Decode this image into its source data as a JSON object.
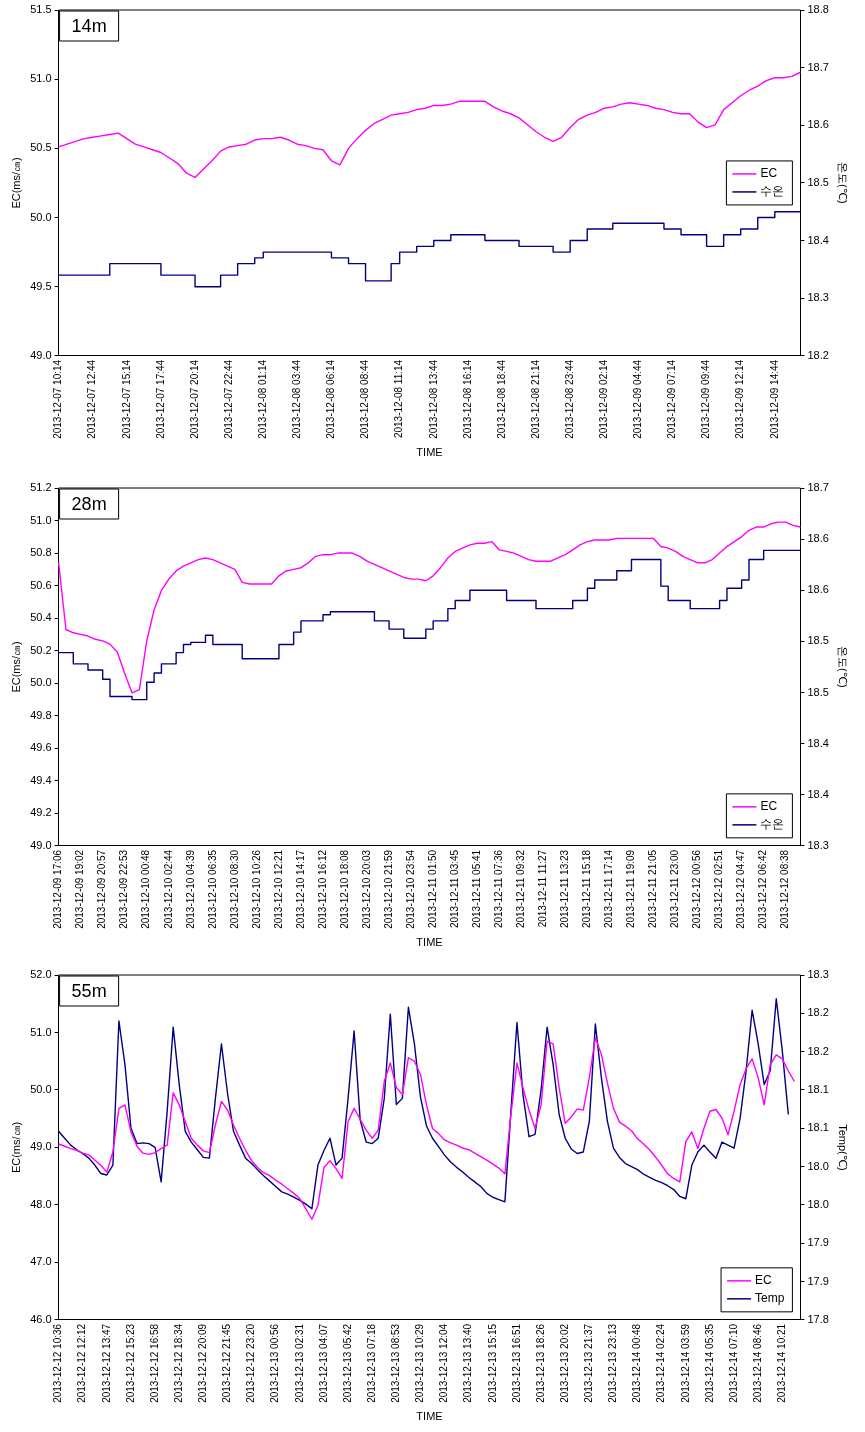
{
  "chart_data": [
    {
      "type": "line",
      "title": "14m",
      "xlabel": "TIME",
      "ylabel": "EC(ms/㎝)",
      "y2label": "온도(℃)",
      "legend": "right",
      "categories": [
        "2013-12-07 10:14",
        null,
        null,
        null,
        "2013-12-07 12:44",
        null,
        null,
        null,
        "2013-12-07 15:14",
        null,
        null,
        null,
        "2013-12-07 17:44",
        null,
        null,
        null,
        "2013-12-07 20:14",
        null,
        null,
        null,
        "2013-12-07 22:44",
        null,
        null,
        null,
        "2013-12-08 01:14",
        null,
        null,
        null,
        "2013-12-08 03:44",
        null,
        null,
        null,
        "2013-12-08 06:14",
        null,
        null,
        null,
        "2013-12-08 08:44",
        null,
        null,
        null,
        "2013-12-08 11:14",
        null,
        null,
        null,
        "2013-12-08 13:44",
        null,
        null,
        null,
        "2013-12-08 16:14",
        null,
        null,
        null,
        "2013-12-08 18:44",
        null,
        null,
        null,
        "2013-12-08 21:14",
        null,
        null,
        null,
        "2013-12-08 23:44",
        null,
        null,
        null,
        "2013-12-09 02:14",
        null,
        null,
        null,
        "2013-12-09 04:44",
        null,
        null,
        null,
        "2013-12-09 07:14",
        null,
        null,
        null,
        "2013-12-09 09:44",
        null,
        null,
        null,
        "2013-12-09 12:14",
        null,
        null,
        null,
        "2013-12-09 14:44",
        null,
        null,
        null
      ],
      "ylim": [
        49,
        51.5
      ],
      "yticks": [
        {
          "value": 49,
          "label": "49.0"
        },
        49.5,
        {
          "value": 50,
          "label": "50.0"
        },
        50.5,
        {
          "value": 51,
          "label": "51.0"
        },
        51.5
      ],
      "y2lim": [
        18.2,
        18.8
      ],
      "y2ticks": [
        18.2,
        18.3,
        18.4,
        18.5,
        18.6,
        18.7,
        18.8
      ],
      "series": [
        {
          "name": "EC",
          "color": "#ff00ff",
          "type": "line",
          "values": [
            50.51,
            50.53,
            50.55,
            50.57,
            50.58,
            50.59,
            50.6,
            50.61,
            50.57,
            50.53,
            50.51,
            50.49,
            50.47,
            50.43,
            50.39,
            50.32,
            50.29,
            50.35,
            50.41,
            50.48,
            50.51,
            50.52,
            50.53,
            50.56,
            50.57,
            50.57,
            50.58,
            50.56,
            50.53,
            50.52,
            50.5,
            50.49,
            50.41,
            50.38,
            50.5,
            50.57,
            50.63,
            50.68,
            50.71,
            50.74,
            50.75,
            50.76,
            50.78,
            50.79,
            50.81,
            50.81,
            50.82,
            50.84,
            50.84,
            50.84,
            50.84,
            50.8,
            50.77,
            50.75,
            50.72,
            50.67,
            50.62,
            50.58,
            50.55,
            50.58,
            50.65,
            50.71,
            50.74,
            50.76,
            50.79,
            50.8,
            50.82,
            50.83,
            50.82,
            50.81,
            50.79,
            50.78,
            50.76,
            50.75,
            50.75,
            50.69,
            50.65,
            50.67,
            50.78,
            50.83,
            50.88,
            50.92,
            50.95,
            50.99,
            51.01,
            51.01,
            51.02,
            51.05
          ]
        },
        {
          "name": "수온",
          "color": "#000080",
          "type": "step",
          "axis": "y2",
          "values": [
            18.34,
            18.34,
            18.34,
            18.34,
            18.34,
            18.34,
            18.36,
            18.36,
            18.36,
            18.36,
            18.36,
            18.36,
            18.34,
            18.34,
            18.34,
            18.34,
            18.32,
            18.32,
            18.32,
            18.34,
            18.34,
            18.36,
            18.36,
            18.37,
            18.38,
            18.38,
            18.38,
            18.38,
            18.38,
            18.38,
            18.38,
            18.38,
            18.37,
            18.37,
            18.36,
            18.36,
            18.33,
            18.33,
            18.33,
            18.36,
            18.38,
            18.38,
            18.39,
            18.39,
            18.4,
            18.4,
            18.41,
            18.41,
            18.41,
            18.41,
            18.4,
            18.4,
            18.4,
            18.4,
            18.39,
            18.39,
            18.39,
            18.39,
            18.38,
            18.38,
            18.4,
            18.4,
            18.42,
            18.42,
            18.42,
            18.43,
            18.43,
            18.43,
            18.43,
            18.43,
            18.43,
            18.42,
            18.42,
            18.41,
            18.41,
            18.41,
            18.39,
            18.39,
            18.41,
            18.41,
            18.42,
            18.42,
            18.44,
            18.44,
            18.45,
            18.45,
            18.45,
            18.45
          ]
        }
      ]
    },
    {
      "type": "line",
      "title": "28m",
      "xlabel": "TIME",
      "ylabel": "EC(ms/㎝)",
      "y2label": "온도(℃)",
      "legend": "bottom right",
      "categories": [
        "2013-12-09 17:06",
        null,
        null,
        "2013-12-09 19:02",
        null,
        null,
        "2013-12-09 20:57",
        null,
        null,
        "2013-12-09 22:53",
        null,
        null,
        "2013-12-10 00:48",
        null,
        null,
        "2013-12-10 02:44",
        null,
        null,
        "2013-12-10 04:39",
        null,
        null,
        "2013-12-10 06:35",
        null,
        null,
        "2013-12-10 08:30",
        null,
        null,
        "2013-12-10 10:26",
        null,
        null,
        "2013-12-10 12:21",
        null,
        null,
        "2013-12-10 14:17",
        null,
        null,
        "2013-12-10 16:12",
        null,
        null,
        "2013-12-10 18:08",
        null,
        null,
        "2013-12-10 20:03",
        null,
        null,
        "2013-12-10 21:59",
        null,
        null,
        "2013-12-10 23:54",
        null,
        null,
        "2013-12-11 01:50",
        null,
        null,
        "2013-12-11 03:45",
        null,
        null,
        "2013-12-11 05:41",
        null,
        null,
        "2013-12-11 07:36",
        null,
        null,
        "2013-12-11 09:32",
        null,
        null,
        "2013-12-11 11:27",
        null,
        null,
        "2013-12-11 13:23",
        null,
        null,
        "2013-12-11 15:18",
        null,
        null,
        "2013-12-11 17:14",
        null,
        null,
        "2013-12-11 19:09",
        null,
        null,
        "2013-12-11 21:05",
        null,
        null,
        "2013-12-11 23:00",
        null,
        null,
        "2013-12-12 00:56",
        null,
        null,
        "2013-12-12 02:51",
        null,
        null,
        "2013-12-12 04:47",
        null,
        null,
        "2013-12-12 06:42",
        null,
        null,
        "2013-12-12 08:38",
        null,
        null
      ],
      "ylim": [
        49,
        51.2
      ],
      "yticks": [
        {
          "value": 49,
          "label": "49.0"
        },
        49.2,
        49.4,
        49.6,
        49.8,
        {
          "value": 50,
          "label": "50.0"
        },
        50.2,
        50.4,
        50.6,
        50.8,
        {
          "value": 51,
          "label": "51.0"
        },
        51.2
      ],
      "y2lim": [
        18.3,
        18.65
      ],
      "y2ticks": [
        18.3,
        {
          "value": 18.35,
          "label": "18.4"
        },
        18.4,
        {
          "value": 18.45,
          "label": "18.5"
        },
        18.5,
        {
          "value": 18.55,
          "label": "18.6"
        },
        18.6,
        {
          "value": 18.65,
          "label": "18.7"
        }
      ],
      "series": [
        {
          "name": "EC",
          "color": "#ff00ff",
          "type": "line",
          "values": [
            50.74,
            50.33,
            50.31,
            50.3,
            50.29,
            50.27,
            50.26,
            50.24,
            50.19,
            50.06,
            49.94,
            49.96,
            50.26,
            50.45,
            50.57,
            50.64,
            50.69,
            50.72,
            50.74,
            50.76,
            50.77,
            50.76,
            50.74,
            50.72,
            50.7,
            50.62,
            50.61,
            50.61,
            50.61,
            50.61,
            50.66,
            50.69,
            50.7,
            50.71,
            50.74,
            50.78,
            50.79,
            50.79,
            50.8,
            50.8,
            50.8,
            50.78,
            50.75,
            50.73,
            50.71,
            50.69,
            50.67,
            50.65,
            50.64,
            50.64,
            50.63,
            50.66,
            50.71,
            50.77,
            50.81,
            50.83,
            50.85,
            50.86,
            50.86,
            50.87,
            50.82,
            50.81,
            50.8,
            50.78,
            50.76,
            50.75,
            50.75,
            50.75,
            50.77,
            50.79,
            50.82,
            50.85,
            50.87,
            50.88,
            50.88,
            50.88,
            50.89,
            50.89,
            50.89,
            50.89,
            50.89,
            50.89,
            50.84,
            50.83,
            50.81,
            50.78,
            50.76,
            50.74,
            50.74,
            50.76,
            50.8,
            50.84,
            50.87,
            50.9,
            50.94,
            50.96,
            50.96,
            50.98,
            50.99,
            50.99,
            50.97,
            50.96
          ]
        },
        {
          "name": "수온",
          "color": "#000080",
          "type": "step",
          "axis": "y2",
          "values": [
            18.489,
            18.489,
            18.478,
            18.478,
            18.472,
            18.472,
            18.463,
            18.446,
            18.446,
            18.446,
            18.443,
            18.443,
            18.46,
            18.469,
            18.478,
            18.478,
            18.489,
            18.497,
            18.499,
            18.499,
            18.506,
            18.497,
            18.497,
            18.497,
            18.497,
            18.483,
            18.483,
            18.483,
            18.483,
            18.483,
            18.497,
            18.497,
            18.509,
            18.52,
            18.52,
            18.52,
            18.526,
            18.529,
            18.529,
            18.529,
            18.529,
            18.529,
            18.529,
            18.52,
            18.52,
            18.512,
            18.512,
            18.503,
            18.503,
            18.503,
            18.512,
            18.52,
            18.52,
            18.532,
            18.54,
            18.54,
            18.55,
            18.55,
            18.55,
            18.55,
            18.55,
            18.54,
            18.54,
            18.54,
            18.54,
            18.532,
            18.532,
            18.532,
            18.532,
            18.532,
            18.54,
            18.54,
            18.552,
            18.56,
            18.56,
            18.56,
            18.569,
            18.569,
            18.58,
            18.58,
            18.58,
            18.58,
            18.554,
            18.54,
            18.54,
            18.54,
            18.532,
            18.532,
            18.532,
            18.532,
            18.54,
            18.552,
            18.552,
            18.56,
            18.58,
            18.58,
            18.589,
            18.589,
            18.589,
            18.589,
            18.589,
            18.589
          ]
        }
      ]
    },
    {
      "type": "line",
      "title": "55m",
      "xlabel": "TIME",
      "ylabel": "EC(ms/㎝)",
      "y2label": "Temp(℃)",
      "legend": "bottom right",
      "categories": [
        "2013-12-12 10:36",
        null,
        null,
        null,
        "2013-12-12 12:12",
        null,
        null,
        null,
        "2013-12-12 13:47",
        null,
        null,
        null,
        "2013-12-12 15:23",
        null,
        null,
        null,
        "2013-12-12 16:58",
        null,
        null,
        null,
        "2013-12-12 18:34",
        null,
        null,
        null,
        "2013-12-12 20:09",
        null,
        null,
        null,
        "2013-12-12 21:45",
        null,
        null,
        null,
        "2013-12-12 23:20",
        null,
        null,
        null,
        "2013-12-13 00:56",
        null,
        null,
        null,
        "2013-12-13 02:31",
        null,
        null,
        null,
        "2013-12-13 04:07",
        null,
        null,
        null,
        "2013-12-13 05:42",
        null,
        null,
        null,
        "2013-12-13 07:18",
        null,
        null,
        null,
        "2013-12-13 08:53",
        null,
        null,
        null,
        "2013-12-13 10:29",
        null,
        null,
        null,
        "2013-12-13 12:04",
        null,
        null,
        null,
        "2013-12-13 13:40",
        null,
        null,
        null,
        "2013-12-13 15:15",
        null,
        null,
        null,
        "2013-12-13 16:51",
        null,
        null,
        null,
        "2013-12-13 18:26",
        null,
        null,
        null,
        "2013-12-13 20:02",
        null,
        null,
        null,
        "2013-12-13 21:37",
        null,
        null,
        null,
        "2013-12-13 23:13",
        null,
        null,
        null,
        "2013-12-14 00:48",
        null,
        null,
        null,
        "2013-12-14 02:24",
        null,
        null,
        null,
        "2013-12-14 03:59",
        null,
        null,
        null,
        "2013-12-14 05:35",
        null,
        null,
        null,
        "2013-12-14 07:10",
        null,
        null,
        null,
        "2013-12-14 08:46",
        null,
        null,
        null,
        "2013-12-14 10:21",
        null,
        null,
        null
      ],
      "ylim": [
        46,
        52
      ],
      "yticks": [
        {
          "value": 46,
          "label": "46.0"
        },
        {
          "value": 47,
          "label": "47.0"
        },
        {
          "value": 48,
          "label": "48.0"
        },
        {
          "value": 49,
          "label": "49.0"
        },
        {
          "value": 50,
          "label": "50.0"
        },
        {
          "value": 51,
          "label": "51.0"
        },
        {
          "value": 52,
          "label": "52.0"
        }
      ],
      "y2lim": [
        17.8,
        18.25
      ],
      "y2ticks": [
        17.8,
        {
          "value": 17.85,
          "label": "17.9"
        },
        17.9,
        {
          "value": 17.95,
          "label": "18.0"
        },
        {
          "value": 18,
          "label": "18.0"
        },
        {
          "value": 18.05,
          "label": "18.1"
        },
        18.1,
        {
          "value": 18.15,
          "label": "18.2"
        },
        18.2,
        {
          "value": 18.25,
          "label": "18.3"
        }
      ],
      "series": [
        {
          "name": "EC",
          "color": "#ff00ff",
          "type": "line",
          "values": [
            49.06,
            49.02,
            48.98,
            48.95,
            48.9,
            48.87,
            48.78,
            48.69,
            48.57,
            48.92,
            49.68,
            49.74,
            49.27,
            49.02,
            48.9,
            48.88,
            48.91,
            48.98,
            49.04,
            49.95,
            49.74,
            49.45,
            49.16,
            49.04,
            48.94,
            48.91,
            49.39,
            49.8,
            49.65,
            49.39,
            49.16,
            48.95,
            48.77,
            48.65,
            48.56,
            48.51,
            48.43,
            48.36,
            48.28,
            48.2,
            48.11,
            47.93,
            47.75,
            47.99,
            48.65,
            48.77,
            48.63,
            48.46,
            49.45,
            49.68,
            49.49,
            49.3,
            49.16,
            49.3,
            50.15,
            50.47,
            50.04,
            49.92,
            50.56,
            50.5,
            50.27,
            49.74,
            49.33,
            49.24,
            49.13,
            49.08,
            49.04,
            48.99,
            48.96,
            48.9,
            48.84,
            48.78,
            48.71,
            48.64,
            48.54,
            49.57,
            50.47,
            50.04,
            49.65,
            49.33,
            49.74,
            50.85,
            50.8,
            50.04,
            49.42,
            49.53,
            49.67,
            49.65,
            50.21,
            50.91,
            50.62,
            50.12,
            49.68,
            49.44,
            49.37,
            49.29,
            49.15,
            49.06,
            48.96,
            48.83,
            48.69,
            48.54,
            48.46,
            48.4,
            49.1,
            49.27,
            48.98,
            49.33,
            49.63,
            49.66,
            49.51,
            49.22,
            49.63,
            50.09,
            50.37,
            50.54,
            50.21,
            49.74,
            50.44,
            50.61,
            50.54,
            50.33,
            50.15,
            null
          ]
        },
        {
          "name": "Temp",
          "color": "#000080",
          "type": "line",
          "axis": "y2",
          "values": [
            18.046,
            18.037,
            18.028,
            18.022,
            18.017,
            18.011,
            18.002,
            17.991,
            17.989,
            18.002,
            18.19,
            18.133,
            18.05,
            18.03,
            18.031,
            18.03,
            18.025,
            17.98,
            18.072,
            18.182,
            18.107,
            18.046,
            18.032,
            18.022,
            18.012,
            18.011,
            18.089,
            18.16,
            18.096,
            18.046,
            18.028,
            18.011,
            18.004,
            17.996,
            17.988,
            17.981,
            17.974,
            17.967,
            17.964,
            17.96,
            17.956,
            17.951,
            17.945,
            18.002,
            18.021,
            18.037,
            18.002,
            18.011,
            18.089,
            18.177,
            18.061,
            18.032,
            18.03,
            18.037,
            18.089,
            18.199,
            18.081,
            18.089,
            18.208,
            18.16,
            18.091,
            18.053,
            18.037,
            18.026,
            18.015,
            18.006,
            17.999,
            17.993,
            17.986,
            17.98,
            17.974,
            17.965,
            17.96,
            17.957,
            17.954,
            18.072,
            18.188,
            18.094,
            18.039,
            18.042,
            18.1,
            18.182,
            18.133,
            18.068,
            18.037,
            18.023,
            18.017,
            18.019,
            18.059,
            18.186,
            18.116,
            18.059,
            18.024,
            18.012,
            18.004,
            18.0,
            17.996,
            17.99,
            17.986,
            17.982,
            17.979,
            17.975,
            17.97,
            17.961,
            17.958,
            18.002,
            18.019,
            18.028,
            18.019,
            18.011,
            18.032,
            18.028,
            18.024,
            18.063,
            18.125,
            18.204,
            18.16,
            18.107,
            18.125,
            18.219,
            18.151,
            18.068,
            null,
            null
          ]
        }
      ]
    }
  ]
}
